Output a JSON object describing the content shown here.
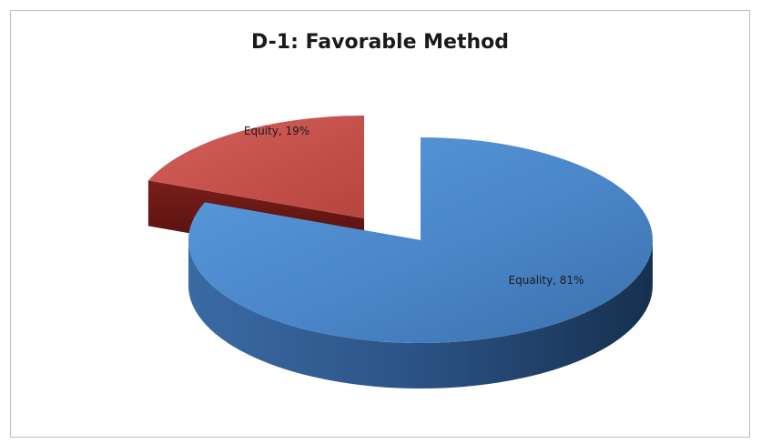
{
  "chart_data": {
    "type": "pie",
    "title": "D-1: Favorable Method",
    "style": "3d-exploded",
    "slices": [
      {
        "label": "Equality",
        "value": 81,
        "display": "Equality, 81%",
        "color": "#4a86c8"
      },
      {
        "label": "Equity",
        "value": 19,
        "display": "Equity, 19%",
        "color": "#c0504d"
      }
    ],
    "legend": "none"
  }
}
